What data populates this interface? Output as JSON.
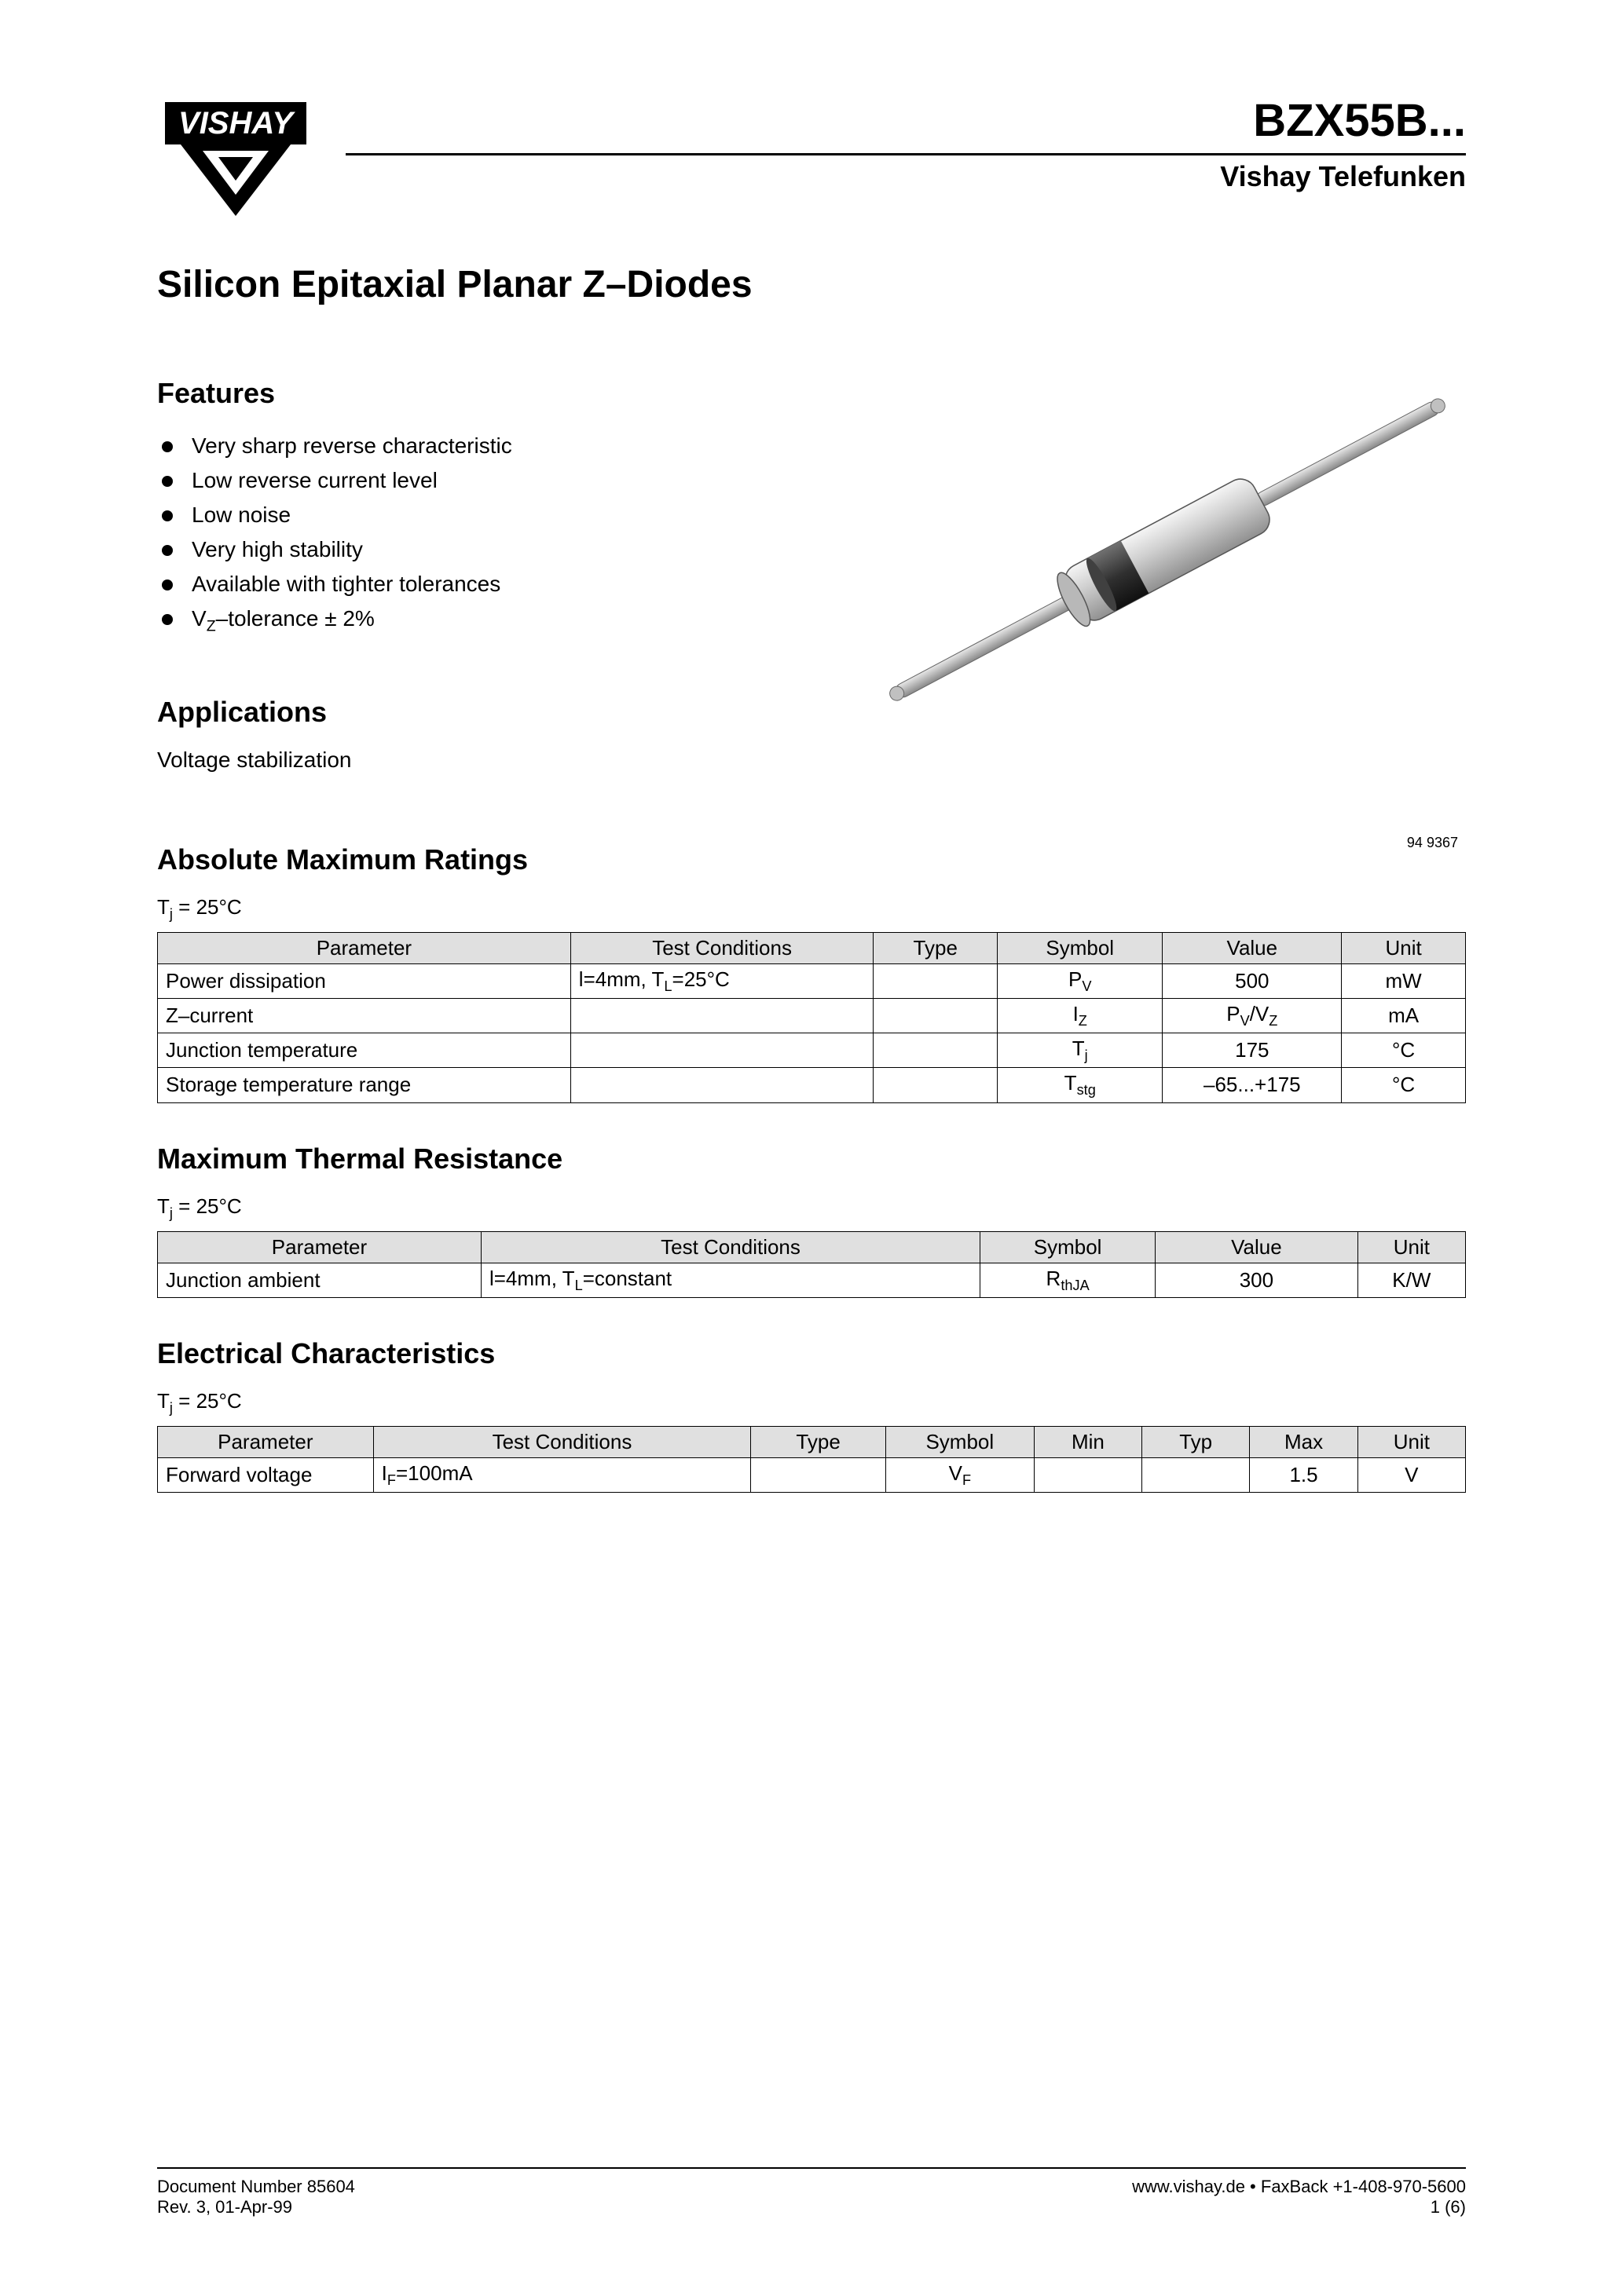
{
  "header": {
    "logo_text": "VISHAY",
    "part_number": "BZX55B...",
    "brand_sub": "Vishay Telefunken"
  },
  "main_title": "Silicon Epitaxial Planar Z–Diodes",
  "features": {
    "heading": "Features",
    "items": [
      "Very sharp reverse characteristic",
      "Low reverse current level",
      "Low noise",
      "Very high stability",
      "Available with tighter tolerances",
      "V_Z–tolerance ± 2%"
    ]
  },
  "applications": {
    "heading": "Applications",
    "text": "Voltage stabilization"
  },
  "diode_image_label": "94 9367",
  "abs_max": {
    "heading": "Absolute Maximum Ratings",
    "condition": "T_j = 25°C",
    "columns": [
      "Parameter",
      "Test Conditions",
      "Type",
      "Symbol",
      "Value",
      "Unit"
    ],
    "col_widths": [
      "30%",
      "22%",
      "9%",
      "12%",
      "13%",
      "9%"
    ],
    "rows": [
      [
        "Power dissipation",
        "l=4mm, T_L=25°C",
        "",
        "P_V",
        "500",
        "mW"
      ],
      [
        "Z–current",
        "",
        "",
        "I_Z",
        "P_V/V_Z",
        "mA"
      ],
      [
        "Junction temperature",
        "",
        "",
        "T_j",
        "175",
        "°C"
      ],
      [
        "Storage temperature range",
        "",
        "",
        "T_stg",
        "–65...+175",
        "°C"
      ]
    ]
  },
  "thermal": {
    "heading": "Maximum Thermal Resistance",
    "condition": "T_j = 25°C",
    "columns": [
      "Parameter",
      "Test Conditions",
      "Symbol",
      "Value",
      "Unit"
    ],
    "col_widths": [
      "24%",
      "37%",
      "13%",
      "15%",
      "8%"
    ],
    "rows": [
      [
        "Junction ambient",
        "l=4mm, T_L=constant",
        "R_thJA",
        "300",
        "K/W"
      ]
    ]
  },
  "electrical": {
    "heading": "Electrical Characteristics",
    "condition": "T_j = 25°C",
    "columns": [
      "Parameter",
      "Test Conditions",
      "Type",
      "Symbol",
      "Min",
      "Typ",
      "Max",
      "Unit"
    ],
    "col_widths": [
      "16%",
      "28%",
      "10%",
      "11%",
      "8%",
      "8%",
      "8%",
      "8%"
    ],
    "rows": [
      [
        "Forward voltage",
        "I_F=100mA",
        "",
        "V_F",
        "",
        "",
        "1.5",
        "V"
      ]
    ]
  },
  "footer": {
    "doc_num": "Document Number 85604",
    "rev": "Rev. 3, 01-Apr-99",
    "web": "www.vishay.de • FaxBack +1-408-970-5600",
    "page": "1 (6)"
  },
  "colors": {
    "text": "#000000",
    "bg": "#ffffff",
    "th_bg": "#e0e0e0",
    "border": "#000000"
  }
}
